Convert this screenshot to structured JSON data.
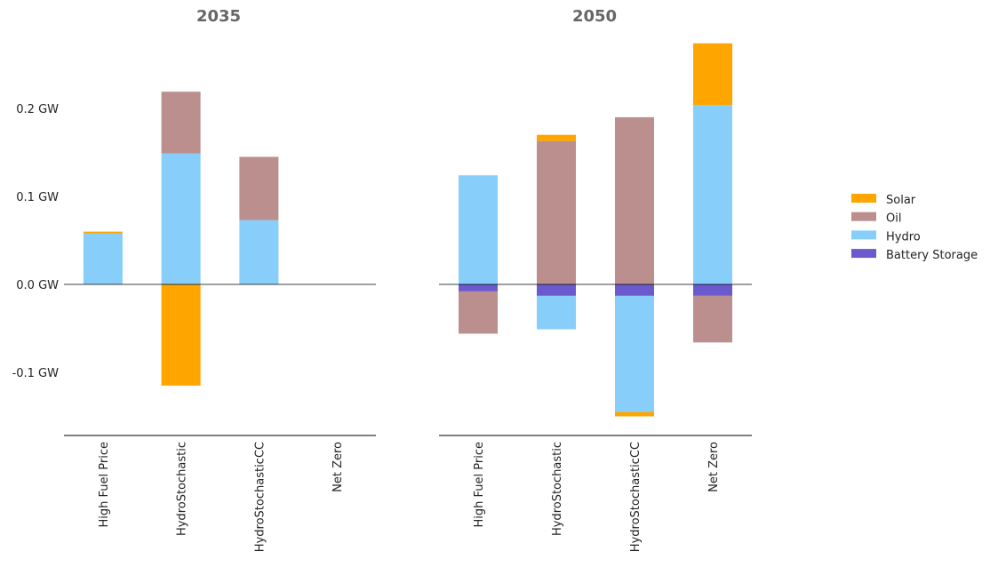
{
  "chart_data": {
    "type": "bar",
    "stacked": true,
    "unit": "GW",
    "categories": [
      "High Fuel Price",
      "HydroStochastic",
      "HydroStochasticCC",
      "Net Zero"
    ],
    "y_ticks": [
      {
        "value": 0.2,
        "label": "0.2 GW"
      },
      {
        "value": 0.1,
        "label": "0.1 GW"
      },
      {
        "value": 0.0,
        "label": "0.0 GW"
      },
      {
        "value": -0.1,
        "label": "-0.1 GW"
      }
    ],
    "ylim": [
      -0.172,
      0.29
    ],
    "legend": {
      "position": "right",
      "entries": [
        {
          "name": "Solar",
          "color": "#FFA500"
        },
        {
          "name": "Oil",
          "color": "#BC8F8F"
        },
        {
          "name": "Hydro",
          "color": "#87CEFA"
        },
        {
          "name": "Battery Storage",
          "color": "#6A5ACD"
        }
      ]
    },
    "panels": [
      {
        "title": "2035",
        "series": [
          {
            "name": "Battery Storage",
            "values": [
              0,
              0,
              0,
              0
            ]
          },
          {
            "name": "Hydro",
            "values": [
              0.058,
              0.149,
              0.073,
              0
            ]
          },
          {
            "name": "Oil",
            "values": [
              0,
              0.07,
              0.072,
              0
            ]
          },
          {
            "name": "Solar",
            "values": [
              0.002,
              -0.115,
              0,
              0
            ]
          }
        ]
      },
      {
        "title": "2050",
        "series": [
          {
            "name": "Battery Storage",
            "values": [
              -0.008,
              -0.013,
              -0.013,
              -0.013
            ]
          },
          {
            "name": "Hydro",
            "values": [
              0.124,
              -0.038,
              -0.132,
              0.204
            ]
          },
          {
            "name": "Oil",
            "values": [
              -0.048,
              0.163,
              0.19,
              -0.053
            ]
          },
          {
            "name": "Solar",
            "values": [
              0,
              0.007,
              -0.005,
              0.07
            ]
          }
        ]
      }
    ]
  }
}
